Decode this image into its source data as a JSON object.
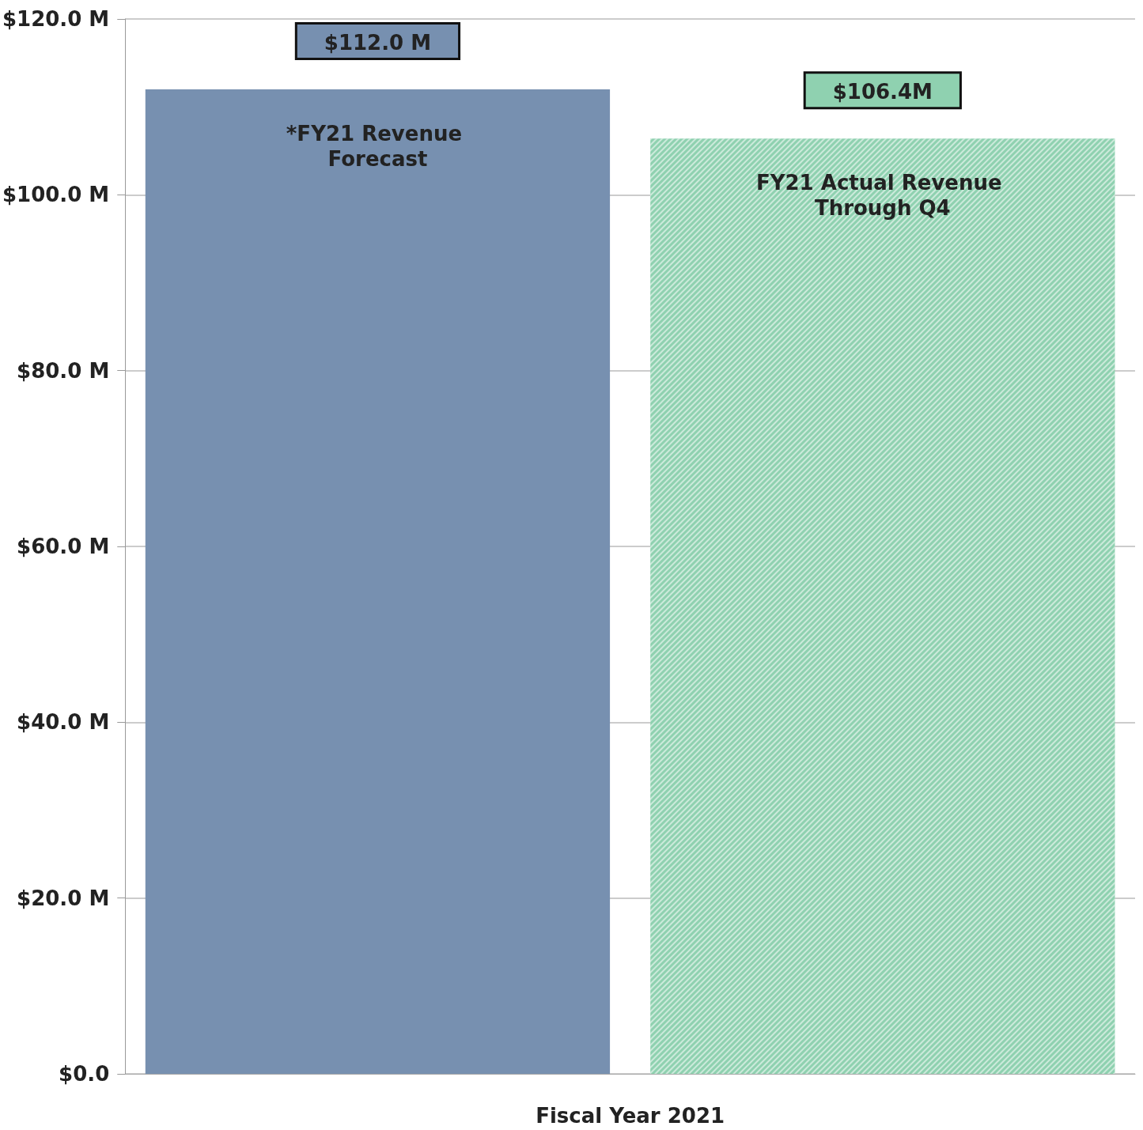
{
  "chart_data": {
    "type": "bar",
    "xlabel": "Fiscal Year 2021",
    "categories": [
      null,
      null
    ],
    "series": [
      {
        "name": "*FY21 Revenue Forecast",
        "color": "#7790b0",
        "values": [
          112.0,
          null
        ],
        "value_labels": [
          "$112.0 M",
          null
        ]
      },
      {
        "name": "FY21 Actual Revenue Through Q4",
        "color": "#8fd1b0",
        "values": [
          null,
          106.4
        ],
        "value_labels": [
          null,
          "$106.4M"
        ]
      }
    ],
    "ylim": [
      0,
      120
    ],
    "yticks": [
      {
        "value": 0,
        "label": "$0.0"
      },
      {
        "value": 20,
        "label": "$20.0 M"
      },
      {
        "value": 40,
        "label": "$40.0 M"
      },
      {
        "value": 60,
        "label": "$60.0 M"
      },
      {
        "value": 80,
        "label": "$80.0 M"
      },
      {
        "value": 100,
        "label": "$100.0 M"
      },
      {
        "value": 120,
        "label": "$120.0 M"
      }
    ],
    "grid": "y",
    "legend": false
  }
}
